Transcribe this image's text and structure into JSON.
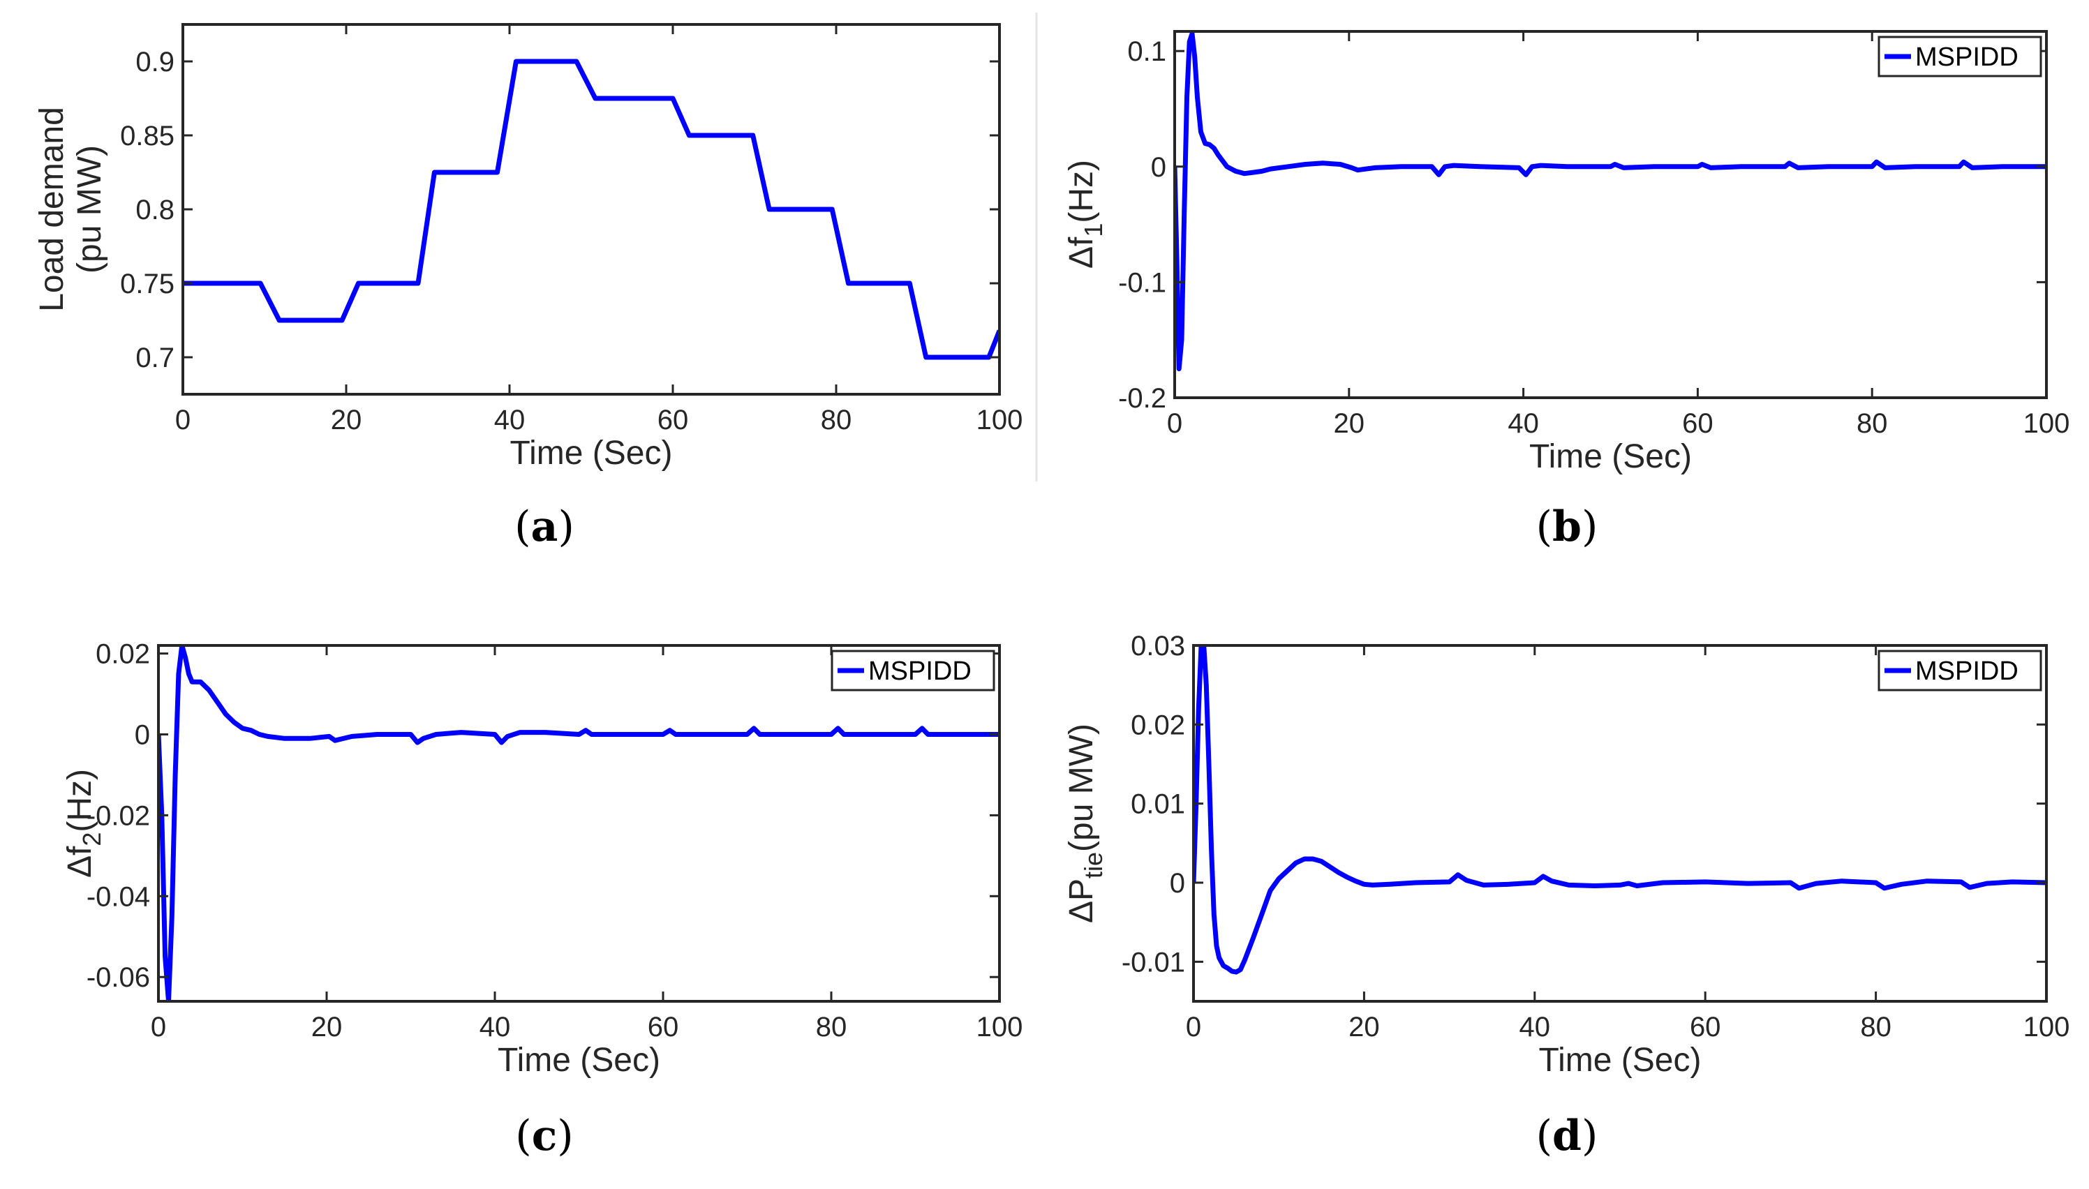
{
  "chart_data": [
    {
      "type": "line",
      "caption": "a",
      "xlabel": "Time (Sec)",
      "ylabel": "Load demand (pu MW)",
      "ylabel_lines": [
        "Load demand",
        "(pu MW)"
      ],
      "xlim": [
        0,
        100
      ],
      "ylim": [
        0.675,
        0.925
      ],
      "xticks": [
        0,
        20,
        40,
        60,
        80,
        100
      ],
      "xtick_labels": [
        "0",
        "20",
        "40",
        "60",
        "80",
        "100"
      ],
      "yticks": [
        0.7,
        0.75,
        0.8,
        0.85,
        0.9
      ],
      "ytick_labels": [
        "0.7",
        "0.75",
        "0.8",
        "0.85",
        "0.9"
      ],
      "legend": null,
      "series": [
        {
          "x": [
            0,
            9.5,
            11.8,
            19.5,
            21.5,
            28.8,
            30.8,
            38.5,
            40.8,
            48.2,
            50.5,
            60,
            62,
            69.8,
            71.8,
            79.5,
            81.5,
            89,
            91,
            98.7,
            100
          ],
          "y": [
            0.75,
            0.75,
            0.725,
            0.725,
            0.75,
            0.75,
            0.825,
            0.825,
            0.9,
            0.9,
            0.875,
            0.875,
            0.85,
            0.85,
            0.8,
            0.8,
            0.75,
            0.75,
            0.7,
            0.7,
            0.718
          ]
        }
      ]
    },
    {
      "type": "line",
      "caption": "b",
      "xlabel": "Time (Sec)",
      "ylabel": "Δf1(Hz)",
      "ylabel_parts": {
        "pre": "Δf",
        "sub": "1",
        "post": "(Hz)"
      },
      "xlim": [
        0,
        100
      ],
      "ylim": [
        -0.2,
        0.117
      ],
      "xticks": [
        0,
        20,
        40,
        60,
        80,
        100
      ],
      "xtick_labels": [
        "0",
        "20",
        "40",
        "60",
        "80",
        "100"
      ],
      "yticks": [
        -0.2,
        -0.1,
        0,
        0.1
      ],
      "ytick_labels": [
        "-0.2",
        "-0.1",
        "0",
        "0.1"
      ],
      "legend": {
        "label": "MSPIDD",
        "position": "top-right"
      },
      "series": [
        {
          "name": "MSPIDD",
          "x": [
            0,
            0.25,
            0.5,
            0.8,
            1.1,
            1.4,
            1.7,
            2.0,
            2.3,
            2.6,
            3.0,
            3.5,
            4.0,
            4.5,
            5.0,
            6.0,
            7.0,
            8.0,
            9.0,
            10.0,
            11.0,
            13.0,
            15.0,
            17.0,
            19.0,
            20.3,
            21.0,
            23.0,
            26.0,
            29.5,
            30.3,
            31.0,
            32.0,
            35.0,
            39.5,
            40.3,
            41.0,
            42.0,
            45.0,
            50.0,
            50.5,
            51.5,
            55.0,
            60.0,
            60.5,
            61.5,
            65.0,
            70.0,
            70.5,
            71.5,
            75.0,
            80.0,
            80.5,
            81.5,
            85.0,
            90.0,
            90.5,
            91.5,
            95.0,
            100.0
          ],
          "y": [
            0,
            -0.08,
            -0.175,
            -0.15,
            -0.04,
            0.06,
            0.108,
            0.115,
            0.095,
            0.06,
            0.03,
            0.02,
            0.019,
            0.016,
            0.01,
            0.0,
            -0.004,
            -0.006,
            -0.005,
            -0.004,
            -0.002,
            0.0,
            0.002,
            0.003,
            0.002,
            -0.001,
            -0.003,
            -0.001,
            0.0,
            0.0,
            -0.007,
            0.0,
            0.001,
            0.0,
            -0.001,
            -0.007,
            0.0,
            0.001,
            0.0,
            0.0,
            0.002,
            -0.001,
            0.0,
            0.0,
            0.002,
            -0.001,
            0.0,
            0.0,
            0.003,
            -0.001,
            0.0,
            0.0,
            0.004,
            -0.001,
            0.0,
            0.0,
            0.004,
            -0.001,
            0.0,
            0.0
          ]
        }
      ]
    },
    {
      "type": "line",
      "caption": "c",
      "xlabel": "Time (Sec)",
      "ylabel": "Δf2(Hz)",
      "ylabel_parts": {
        "pre": "Δf",
        "sub": "2",
        "post": "(Hz)"
      },
      "xlim": [
        0,
        100
      ],
      "ylim": [
        -0.066,
        0.022
      ],
      "xticks": [
        0,
        20,
        40,
        60,
        80,
        100
      ],
      "xtick_labels": [
        "0",
        "20",
        "40",
        "60",
        "80",
        "100"
      ],
      "yticks": [
        -0.06,
        -0.04,
        -0.02,
        0,
        0.02
      ],
      "ytick_labels": [
        "-0.06",
        "-0.04",
        "-0.02",
        "0",
        "0.02"
      ],
      "legend": {
        "label": "MSPIDD",
        "position": "top-right"
      },
      "series": [
        {
          "name": "MSPIDD",
          "x": [
            0,
            0.4,
            0.8,
            1.2,
            1.6,
            2.0,
            2.4,
            2.8,
            3.2,
            3.6,
            4.0,
            5.0,
            6.0,
            7.0,
            8.0,
            9.0,
            10.0,
            11.0,
            12.0,
            13.0,
            15.0,
            18.0,
            20.3,
            21.0,
            23.0,
            26.0,
            30.0,
            30.8,
            31.5,
            33.0,
            36.0,
            40.0,
            40.8,
            41.5,
            43.0,
            46.0,
            50.0,
            50.8,
            51.5,
            55.0,
            60.0,
            60.8,
            61.5,
            65.0,
            70.0,
            70.8,
            71.5,
            75.0,
            80.0,
            80.8,
            81.5,
            85.0,
            90.0,
            90.8,
            91.5,
            95.0,
            100.0
          ],
          "y": [
            0,
            -0.02,
            -0.055,
            -0.066,
            -0.045,
            -0.01,
            0.015,
            0.022,
            0.019,
            0.015,
            0.013,
            0.013,
            0.011,
            0.008,
            0.005,
            0.003,
            0.0015,
            0.001,
            0.0,
            -0.0005,
            -0.001,
            -0.001,
            -0.0005,
            -0.0015,
            -0.0005,
            0.0,
            0.0,
            -0.002,
            -0.001,
            0.0,
            0.0005,
            0.0,
            -0.002,
            -0.0005,
            0.0005,
            0.0005,
            0.0,
            0.001,
            0.0,
            0.0,
            0.0,
            0.001,
            0.0,
            0.0,
            0.0,
            0.0015,
            0.0,
            0.0,
            0.0,
            0.0015,
            0.0,
            0.0,
            0.0,
            0.0015,
            0.0,
            0.0,
            0.0
          ]
        }
      ]
    },
    {
      "type": "line",
      "caption": "d",
      "xlabel": "Time (Sec)",
      "ylabel": "ΔPtie(pu MW)",
      "ylabel_parts": {
        "pre": "ΔP",
        "sub": "tie",
        "post": "(pu MW)"
      },
      "xlim": [
        0,
        100
      ],
      "ylim": [
        -0.015,
        0.03
      ],
      "xticks": [
        0,
        20,
        40,
        60,
        80,
        100
      ],
      "xtick_labels": [
        "0",
        "20",
        "40",
        "60",
        "80",
        "100"
      ],
      "yticks": [
        -0.01,
        0,
        0.01,
        0.02,
        0.03
      ],
      "ytick_labels": [
        "-0.01",
        "0",
        "0.01",
        "0.02",
        "0.03"
      ],
      "legend": {
        "label": "MSPIDD",
        "position": "top-right"
      },
      "series": [
        {
          "name": "MSPIDD",
          "x": [
            0,
            0.3,
            0.6,
            0.9,
            1.2,
            1.5,
            1.8,
            2.1,
            2.4,
            2.7,
            3.0,
            3.5,
            4.0,
            4.5,
            5.0,
            5.5,
            6.0,
            7.0,
            8.0,
            9.0,
            10.0,
            11.0,
            12.0,
            13.0,
            14.0,
            15.0,
            16.0,
            17.0,
            18.0,
            19.0,
            20.0,
            21.0,
            23.0,
            26.0,
            30.0,
            31.0,
            32.0,
            34.0,
            37.0,
            40.0,
            41.0,
            42.0,
            44.0,
            47.0,
            50.0,
            51.0,
            52.0,
            55.0,
            60.0,
            65.0,
            70.0,
            71.0,
            73.0,
            76.0,
            80.0,
            81.0,
            83.0,
            86.0,
            90.0,
            91.0,
            93.0,
            96.0,
            100.0
          ],
          "y": [
            0,
            0.01,
            0.022,
            0.03,
            0.03,
            0.025,
            0.015,
            0.004,
            -0.004,
            -0.008,
            -0.0095,
            -0.0105,
            -0.0108,
            -0.0112,
            -0.0113,
            -0.011,
            -0.0098,
            -0.007,
            -0.004,
            -0.001,
            0.0005,
            0.0015,
            0.0025,
            0.003,
            0.003,
            0.0027,
            0.002,
            0.0013,
            0.0007,
            0.0002,
            -0.0002,
            -0.0003,
            -0.0002,
            0.0,
            0.0001,
            0.001,
            0.0003,
            -0.0003,
            -0.0002,
            0.0,
            0.0008,
            0.0002,
            -0.0003,
            -0.0004,
            -0.0003,
            -0.0001,
            -0.0004,
            0.0,
            0.0001,
            -0.0001,
            0.0,
            -0.0007,
            -0.0001,
            0.0002,
            0.0,
            -0.0007,
            -0.0002,
            0.0002,
            0.0001,
            -0.0006,
            -0.0001,
            0.0001,
            0.0
          ]
        }
      ]
    }
  ]
}
